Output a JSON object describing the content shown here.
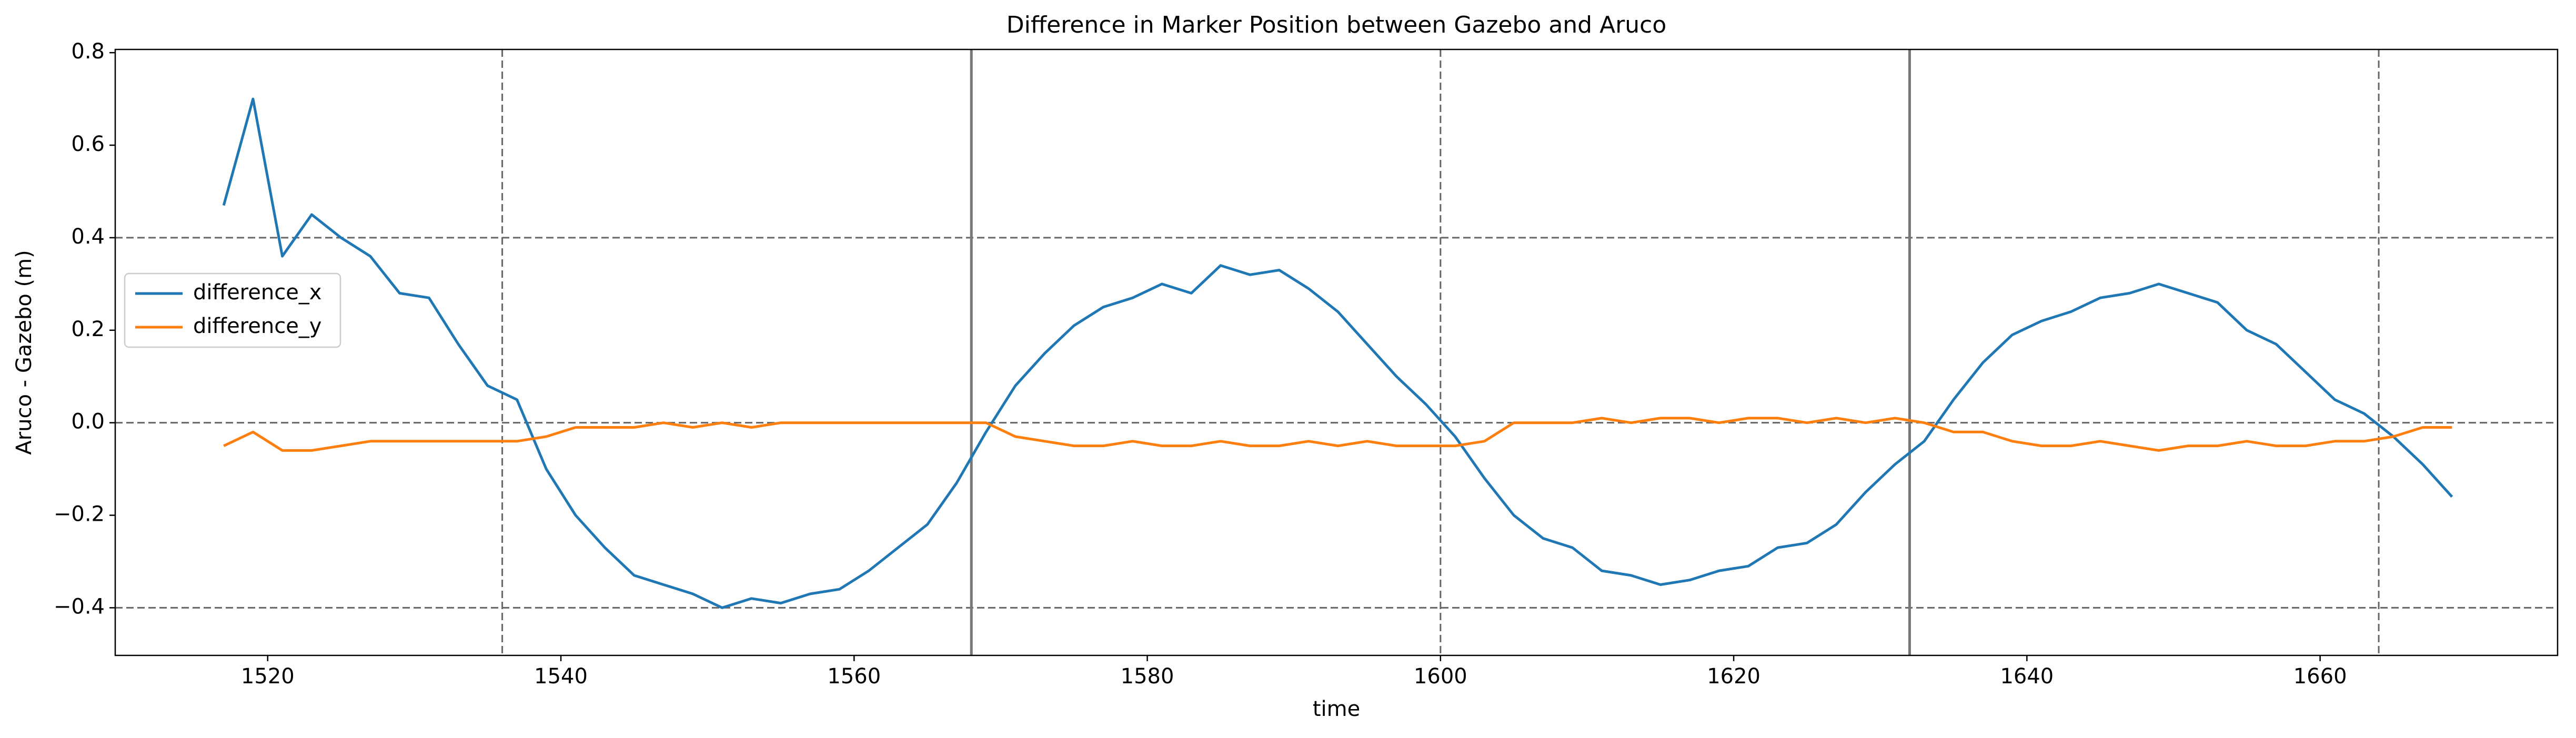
{
  "chart_data": {
    "type": "line",
    "title": "Difference in Marker Position between Gazebo and Aruco",
    "xlabel": "time",
    "ylabel": "Aruco - Gazebo (m)",
    "x": [
      1517,
      1519,
      1521,
      1523,
      1525,
      1527,
      1529,
      1531,
      1533,
      1535,
      1537,
      1539,
      1541,
      1543,
      1545,
      1547,
      1549,
      1551,
      1553,
      1555,
      1557,
      1559,
      1561,
      1563,
      1565,
      1567,
      1569,
      1571,
      1573,
      1575,
      1577,
      1579,
      1581,
      1583,
      1585,
      1587,
      1589,
      1591,
      1593,
      1595,
      1597,
      1599,
      1601,
      1603,
      1605,
      1607,
      1609,
      1611,
      1613,
      1615,
      1617,
      1619,
      1621,
      1623,
      1625,
      1627,
      1629,
      1631,
      1633,
      1635,
      1637,
      1639,
      1641,
      1643,
      1645,
      1647,
      1649,
      1651,
      1653,
      1655,
      1657,
      1659,
      1661,
      1663,
      1665,
      1667,
      1669
    ],
    "series": [
      {
        "name": "difference_x",
        "color": "#1f77b4",
        "values": [
          0.47,
          0.7,
          0.36,
          0.45,
          0.4,
          0.36,
          0.28,
          0.27,
          0.17,
          0.08,
          0.05,
          -0.1,
          -0.2,
          -0.27,
          -0.33,
          -0.35,
          -0.37,
          -0.4,
          -0.38,
          -0.39,
          -0.37,
          -0.36,
          -0.32,
          -0.27,
          -0.22,
          -0.13,
          -0.02,
          0.08,
          0.15,
          0.21,
          0.25,
          0.27,
          0.3,
          0.28,
          0.34,
          0.32,
          0.33,
          0.29,
          0.24,
          0.17,
          0.1,
          0.04,
          -0.03,
          -0.12,
          -0.2,
          -0.25,
          -0.27,
          -0.32,
          -0.33,
          -0.35,
          -0.34,
          -0.32,
          -0.31,
          -0.27,
          -0.26,
          -0.22,
          -0.15,
          -0.09,
          -0.04,
          0.05,
          0.13,
          0.19,
          0.22,
          0.24,
          0.27,
          0.28,
          0.3,
          0.28,
          0.26,
          0.2,
          0.17,
          0.11,
          0.05,
          0.02,
          -0.03,
          -0.09,
          -0.16
        ]
      },
      {
        "name": "difference_y",
        "color": "#ff7f0e",
        "values": [
          -0.05,
          -0.02,
          -0.06,
          -0.06,
          -0.05,
          -0.04,
          -0.04,
          -0.04,
          -0.04,
          -0.04,
          -0.04,
          -0.03,
          -0.01,
          -0.01,
          -0.01,
          0,
          -0.01,
          0,
          -0.01,
          0,
          0,
          0,
          0,
          0,
          0,
          0,
          0,
          -0.03,
          -0.04,
          -0.05,
          -0.05,
          -0.04,
          -0.05,
          -0.05,
          -0.04,
          -0.05,
          -0.05,
          -0.04,
          -0.05,
          -0.04,
          -0.05,
          -0.05,
          -0.05,
          -0.04,
          0,
          0,
          0,
          0.01,
          0,
          0.01,
          0.01,
          0,
          0.01,
          0.01,
          0,
          0.01,
          0,
          0.01,
          0,
          -0.02,
          -0.02,
          -0.04,
          -0.05,
          -0.05,
          -0.04,
          -0.05,
          -0.06,
          -0.05,
          -0.05,
          -0.04,
          -0.05,
          -0.05,
          -0.04,
          -0.04,
          -0.03,
          -0.01,
          -0.01
        ]
      }
    ],
    "xlim": [
      1509.6,
      1676.2
    ],
    "ylim": [
      -0.503,
      0.807
    ],
    "xticks": [
      1520,
      1540,
      1560,
      1580,
      1600,
      1620,
      1640,
      1660
    ],
    "yticks": [
      {
        "value": -0.4,
        "label": "−0.4"
      },
      {
        "value": -0.2,
        "label": "−0.2"
      },
      {
        "value": 0,
        "label": "0.0"
      },
      0.2,
      0.4,
      0.6,
      0.8
    ],
    "reference_lines": {
      "dashed_y": [
        -0.4,
        0,
        0.4
      ],
      "dashed_x": [
        1536,
        1600,
        1664
      ],
      "solid_x": [
        1568,
        1632
      ]
    },
    "legend": "center left"
  }
}
